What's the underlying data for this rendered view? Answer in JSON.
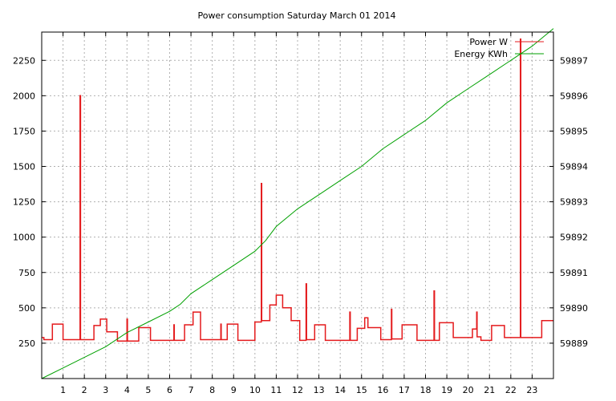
{
  "chart_data": {
    "type": "line",
    "title": "Power consumption Saturday March 01 2014",
    "xlabel": "",
    "ylabel": "",
    "y2label": "",
    "xlim": [
      0,
      24
    ],
    "ylim": [
      0,
      2450
    ],
    "y2lim": [
      59888,
      59897.8
    ],
    "x_ticks": [
      1,
      2,
      3,
      4,
      5,
      6,
      7,
      8,
      9,
      10,
      11,
      12,
      13,
      14,
      15,
      16,
      17,
      18,
      19,
      20,
      21,
      22,
      23
    ],
    "y_ticks": [
      250,
      500,
      750,
      1000,
      1250,
      1500,
      1750,
      2000,
      2250
    ],
    "y2_ticks": [
      59889,
      59890,
      59891,
      59892,
      59893,
      59894,
      59895,
      59896,
      59897
    ],
    "grid": true,
    "legend_position": "top-right",
    "series": [
      {
        "name": "Power W",
        "axis": "left",
        "color": "#e41a1c",
        "x": [
          0,
          0.1,
          0.1,
          0.5,
          0.5,
          1.0,
          1.0,
          1.8,
          1.8,
          1.82,
          1.82,
          2.45,
          2.45,
          2.75,
          2.75,
          3.05,
          3.05,
          3.55,
          3.55,
          4.0,
          4.0,
          4.02,
          4.02,
          4.55,
          4.55,
          5.1,
          5.1,
          6.2,
          6.2,
          6.22,
          6.22,
          6.7,
          6.7,
          7.1,
          7.1,
          7.45,
          7.45,
          8.4,
          8.4,
          8.42,
          8.42,
          8.7,
          8.7,
          9.2,
          9.2,
          10.0,
          10.0,
          10.3,
          10.3,
          10.32,
          10.32,
          10.7,
          10.7,
          11.0,
          11.0,
          11.3,
          11.3,
          11.7,
          11.7,
          12.1,
          12.1,
          12.4,
          12.4,
          12.42,
          12.42,
          12.8,
          12.8,
          13.3,
          13.3,
          14.45,
          14.45,
          14.47,
          14.47,
          14.8,
          14.8,
          15.15,
          15.15,
          15.3,
          15.3,
          15.9,
          15.9,
          16.4,
          16.4,
          16.42,
          16.42,
          16.9,
          16.9,
          17.6,
          17.6,
          18.4,
          18.4,
          18.42,
          18.42,
          18.65,
          18.65,
          19.3,
          19.3,
          20.2,
          20.2,
          20.4,
          20.4,
          20.42,
          20.42,
          20.6,
          20.6,
          21.1,
          21.1,
          21.7,
          21.7,
          22.45,
          22.45,
          22.47,
          22.47,
          23.45,
          23.45,
          24
        ],
        "values": [
          290,
          290,
          275,
          275,
          385,
          385,
          275,
          275,
          2000,
          2000,
          275,
          275,
          375,
          375,
          420,
          420,
          330,
          330,
          265,
          265,
          420,
          420,
          265,
          265,
          360,
          360,
          270,
          270,
          380,
          380,
          270,
          270,
          380,
          380,
          470,
          470,
          275,
          275,
          385,
          385,
          275,
          275,
          385,
          385,
          270,
          270,
          400,
          400,
          1380,
          1380,
          410,
          410,
          520,
          520,
          590,
          590,
          500,
          500,
          410,
          410,
          270,
          270,
          670,
          670,
          275,
          275,
          380,
          380,
          270,
          270,
          470,
          470,
          270,
          270,
          355,
          355,
          430,
          430,
          360,
          360,
          275,
          275,
          490,
          490,
          280,
          280,
          380,
          380,
          270,
          270,
          620,
          620,
          270,
          270,
          395,
          395,
          290,
          290,
          350,
          350,
          470,
          470,
          295,
          295,
          270,
          270,
          375,
          375,
          290,
          290,
          2400,
          2400,
          290,
          290,
          410,
          410
        ]
      },
      {
        "name": "Energy KWh",
        "axis": "right",
        "color": "#00a000",
        "x": [
          0,
          1,
          2,
          3,
          4,
          5,
          6,
          6.5,
          7,
          8,
          9,
          10,
          10.5,
          11,
          12,
          13,
          14,
          15,
          16,
          17,
          18,
          19,
          20,
          21,
          22,
          23,
          24
        ],
        "values": [
          59888,
          59888.3,
          59888.6,
          59888.9,
          59889.3,
          59889.6,
          59889.9,
          59890.1,
          59890.4,
          59890.8,
          59891.2,
          59891.6,
          59891.9,
          59892.3,
          59892.8,
          59893.2,
          59893.6,
          59894.0,
          59894.5,
          59894.9,
          59895.3,
          59895.8,
          59896.2,
          59896.6,
          59897.0,
          59897.4,
          59897.9
        ]
      }
    ]
  }
}
